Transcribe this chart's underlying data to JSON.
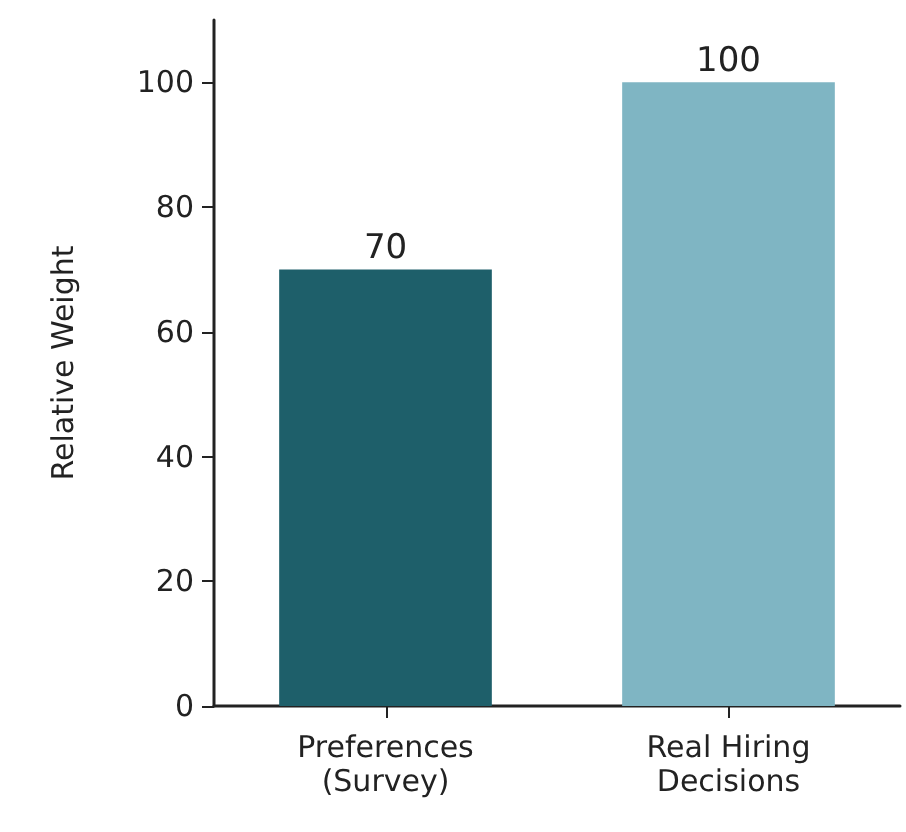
{
  "chart_data": {
    "type": "bar",
    "ylabel": "Relative Weight",
    "categories": [
      "Preferences\n(Survey)",
      "Real Hiring\nDecisions"
    ],
    "values": [
      70,
      100
    ],
    "colors": [
      "#1e5f6a",
      "#7fb5c3"
    ],
    "ylim": [
      0,
      110
    ],
    "yticks": [
      0,
      20,
      40,
      60,
      80,
      100
    ],
    "data_labels": true,
    "grid": false
  }
}
